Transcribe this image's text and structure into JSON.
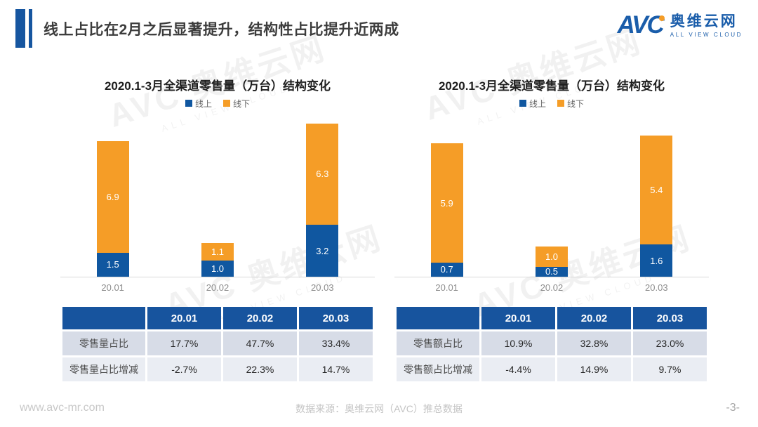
{
  "header": {
    "title": "线上占比在2月之后显著提升，结构性占比提升近两成"
  },
  "logo": {
    "acronym": "AVC",
    "name": "奥维云网",
    "tagline": "ALL VIEW CLOUD"
  },
  "watermark": {
    "main": "AVC 奥维云网",
    "sub": "ALL VIEW CLOUD"
  },
  "colors": {
    "online_blue": "#1057A0",
    "offline_orange": "#F59D27",
    "table_header_blue": "#17549E",
    "accent_blue": "#1656A0"
  },
  "chart_data": [
    {
      "type": "bar",
      "stacked": true,
      "title": "2020.1-3月全渠道零售量（万台）结构变化",
      "categories": [
        "20.01",
        "20.02",
        "20.03"
      ],
      "series": [
        {
          "name": "线上",
          "color": "#1057A0",
          "values": [
            1.5,
            1.0,
            3.2
          ]
        },
        {
          "name": "线下",
          "color": "#F59D27",
          "values": [
            6.9,
            1.1,
            6.3
          ]
        }
      ],
      "ylim": [
        0,
        10
      ],
      "legend_position": "top",
      "grid": false,
      "table": {
        "headers": [
          "",
          "20.01",
          "20.02",
          "20.03"
        ],
        "rows": [
          {
            "label": "零售量占比",
            "values": [
              "17.7%",
              "47.7%",
              "33.4%"
            ]
          },
          {
            "label": "零售量占比增减",
            "values": [
              "-2.7%",
              "22.3%",
              "14.7%"
            ]
          }
        ]
      }
    },
    {
      "type": "bar",
      "stacked": true,
      "title": "2020.1-3月全渠道零售量（万台）结构变化",
      "categories": [
        "20.01",
        "20.02",
        "20.03"
      ],
      "series": [
        {
          "name": "线上",
          "color": "#1057A0",
          "values": [
            0.7,
            0.5,
            1.6
          ]
        },
        {
          "name": "线下",
          "color": "#F59D27",
          "values": [
            5.9,
            1.0,
            5.4
          ]
        }
      ],
      "ylim": [
        0,
        8
      ],
      "legend_position": "top",
      "grid": false,
      "table": {
        "headers": [
          "",
          "20.01",
          "20.02",
          "20.03"
        ],
        "rows": [
          {
            "label": "零售额占比",
            "values": [
              "10.9%",
              "32.8%",
              "23.0%"
            ]
          },
          {
            "label": "零售额占比增减",
            "values": [
              "-4.4%",
              "14.9%",
              "9.7%"
            ]
          }
        ]
      }
    }
  ],
  "footer": {
    "website": "www.avc-mr.com",
    "source": "数据来源：奥维云网（AVC）推总数据",
    "page": "-3-"
  }
}
